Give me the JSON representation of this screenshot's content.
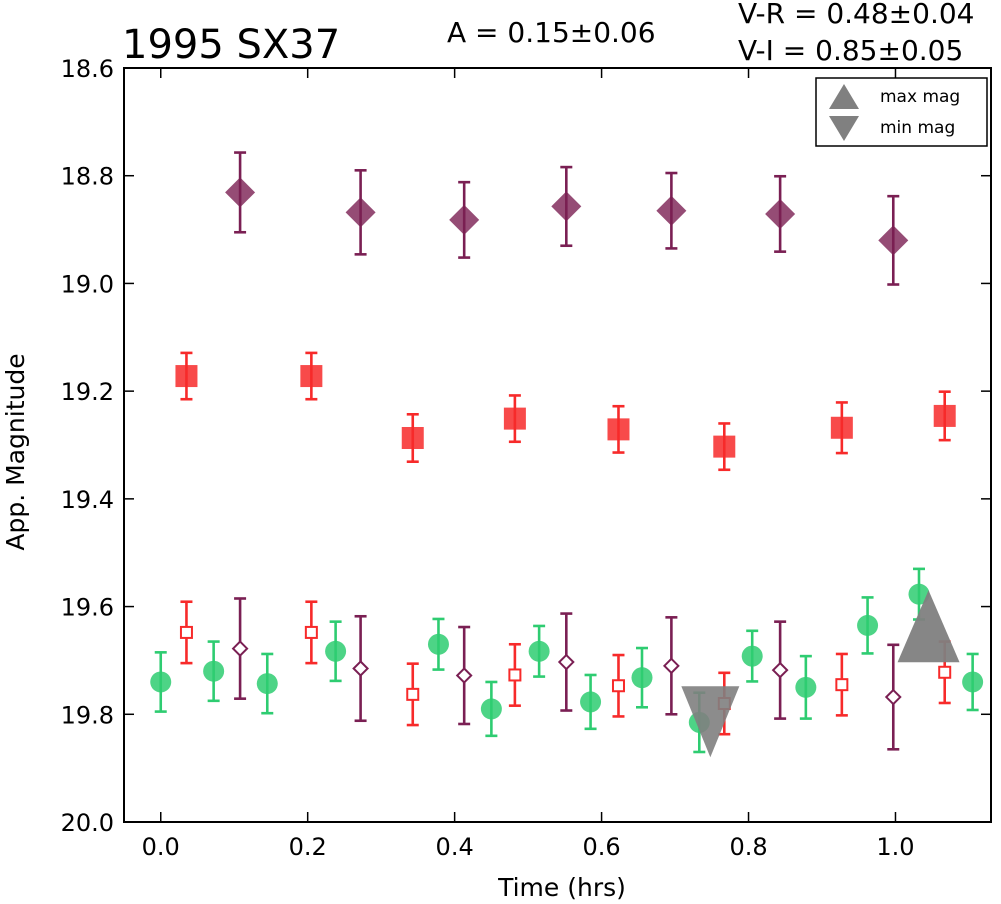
{
  "chart_data": {
    "type": "scatter",
    "title": "1995 SX37",
    "stats": {
      "amplitude": "A  = 0.15±0.06",
      "v_r": "V-R = 0.48±0.04",
      "v_i": "V-I  = 0.85±0.05"
    },
    "xlabel": "Time (hrs)",
    "ylabel": "App. Magnitude",
    "xlim": [
      -0.05,
      1.13
    ],
    "ylim": [
      20.0,
      18.6
    ],
    "x_ticks": [
      "0.0",
      "0.2",
      "0.4",
      "0.6",
      "0.8",
      "1.0"
    ],
    "y_ticks": [
      "18.6",
      "18.8",
      "19.0",
      "19.2",
      "19.4",
      "19.6",
      "19.8",
      "20.0"
    ],
    "legend": {
      "location": "upper right",
      "entries": [
        "max mag",
        "min mag"
      ]
    },
    "colors": {
      "V": "#2ecc71",
      "R": "#f72a2a",
      "I": "#7a1f53",
      "extrema": "#808080"
    },
    "series": [
      {
        "band": "V",
        "marker": "circle",
        "filled": true,
        "offset": 0,
        "points": [
          [
            0.0,
            19.74,
            0.055
          ],
          [
            0.072,
            19.72,
            0.055
          ],
          [
            0.145,
            19.743,
            0.055
          ],
          [
            0.238,
            19.683,
            0.055
          ],
          [
            0.378,
            19.67,
            0.047
          ],
          [
            0.45,
            19.79,
            0.05
          ],
          [
            0.515,
            19.683,
            0.047
          ],
          [
            0.585,
            19.777,
            0.05
          ],
          [
            0.655,
            19.732,
            0.055
          ],
          [
            0.733,
            19.815,
            0.055
          ],
          [
            0.805,
            19.692,
            0.047
          ],
          [
            0.878,
            19.75,
            0.058
          ],
          [
            0.962,
            19.635,
            0.052
          ],
          [
            1.032,
            19.577,
            0.047
          ],
          [
            1.105,
            19.74,
            0.052
          ]
        ]
      },
      {
        "band": "R",
        "marker": "square",
        "filled": true,
        "offset": 0,
        "points": [
          [
            0.035,
            19.172,
            0.043
          ],
          [
            0.205,
            19.172,
            0.043
          ],
          [
            0.343,
            19.287,
            0.044
          ],
          [
            0.482,
            19.251,
            0.043
          ],
          [
            0.623,
            19.271,
            0.043
          ],
          [
            0.767,
            19.303,
            0.043
          ],
          [
            0.927,
            19.268,
            0.047
          ],
          [
            1.067,
            19.246,
            0.045
          ]
        ]
      },
      {
        "band": "I",
        "marker": "diamond",
        "filled": true,
        "offset": 0,
        "points": [
          [
            0.108,
            18.831,
            0.074
          ],
          [
            0.272,
            18.868,
            0.078
          ],
          [
            0.413,
            18.882,
            0.07
          ],
          [
            0.552,
            18.857,
            0.073
          ],
          [
            0.695,
            18.865,
            0.07
          ],
          [
            0.843,
            18.871,
            0.07
          ],
          [
            0.997,
            18.92,
            0.082
          ]
        ]
      },
      {
        "band": "R",
        "marker": "square",
        "filled": false,
        "offset": 0.48,
        "points": [
          [
            0.035,
            19.648,
            0.057
          ],
          [
            0.205,
            19.648,
            0.057
          ],
          [
            0.343,
            19.763,
            0.057
          ],
          [
            0.482,
            19.727,
            0.057
          ],
          [
            0.623,
            19.747,
            0.057
          ],
          [
            0.767,
            19.78,
            0.057
          ],
          [
            0.927,
            19.745,
            0.057
          ],
          [
            1.067,
            19.722,
            0.057
          ]
        ]
      },
      {
        "band": "I",
        "marker": "diamond",
        "filled": false,
        "offset": 0.85,
        "points": [
          [
            0.108,
            19.678,
            0.093
          ],
          [
            0.272,
            19.715,
            0.097
          ],
          [
            0.413,
            19.728,
            0.09
          ],
          [
            0.552,
            19.703,
            0.09
          ],
          [
            0.695,
            19.71,
            0.09
          ],
          [
            0.843,
            19.718,
            0.09
          ],
          [
            0.997,
            19.768,
            0.097
          ]
        ]
      }
    ],
    "extrema": {
      "max_mag": {
        "x": 1.045,
        "y": 19.655
      },
      "min_mag": {
        "x": 0.748,
        "y": 19.8
      }
    }
  }
}
